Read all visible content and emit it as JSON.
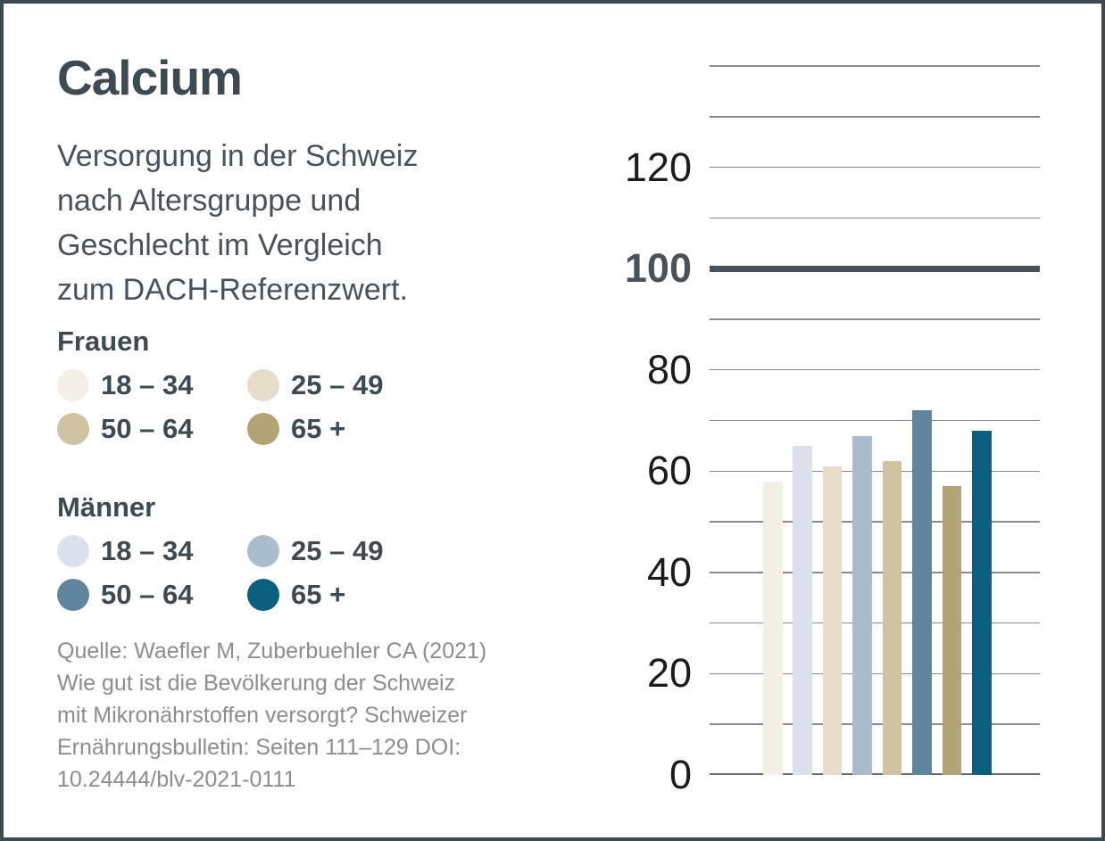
{
  "header": {
    "title": "Calcium",
    "subtitle_lines": [
      "Versorgung in der Schweiz",
      "nach Altersgruppe und",
      "Geschlecht im Vergleich",
      "zum DACH-Referenzwert."
    ]
  },
  "legend": {
    "groups": [
      {
        "name": "Frauen",
        "items": [
          {
            "label": "18 – 34",
            "color": "#f4f0e6"
          },
          {
            "label": "25 – 49",
            "color": "#e5dcc9"
          },
          {
            "label": "50 – 64",
            "color": "#cfc3a1"
          },
          {
            "label": "65 +",
            "color": "#b3a375"
          }
        ]
      },
      {
        "name": "Männer",
        "items": [
          {
            "label": "18 – 34",
            "color": "#dce2ed"
          },
          {
            "label": "25 – 49",
            "color": "#aabdce"
          },
          {
            "label": "50 – 64",
            "color": "#60859f"
          },
          {
            "label": "65 +",
            "color": "#0c607f"
          }
        ]
      }
    ]
  },
  "source": {
    "lines": [
      "Quelle: Waefler M, Zuberbuehler CA (2021)",
      "Wie gut ist die Bevölkerung der Schweiz",
      "mit Mikronährstoffen versorgt? Schweizer",
      "Ernährungsbulletin: Seiten 111–129 DOI:",
      "10.24444/blv-2021-0111"
    ]
  },
  "chart_data": {
    "type": "bar",
    "title": "Calcium — Versorgung in der Schweiz nach Altersgruppe und Geschlecht im Vergleich zum DACH-Referenzwert",
    "categories": [
      "Frauen 18 – 34",
      "Männer 18 – 34",
      "Frauen 25 – 49",
      "Männer 25 – 49",
      "Frauen 50 – 64",
      "Männer 50 – 64",
      "Frauen 65 +",
      "Männer 65 +"
    ],
    "values": [
      58,
      65,
      61,
      67,
      62,
      72,
      57,
      68
    ],
    "colors": [
      "#f4f0e6",
      "#dce2ed",
      "#e5dcc9",
      "#aabdce",
      "#cfc3a1",
      "#60859f",
      "#b3a375",
      "#0c607f"
    ],
    "xlabel": "",
    "ylabel": "",
    "ylim": [
      0,
      140
    ],
    "gridline_step": 10,
    "grid": true,
    "ytick_values": [
      0,
      20,
      40,
      60,
      80,
      100,
      120
    ],
    "reference_line": {
      "value": 100,
      "label": "100"
    },
    "legend_position": "left"
  },
  "colors": {
    "accent_dark": "#3d4a52",
    "subtitle_text": "#47525b",
    "source_text": "#8d8d8d",
    "gridline": "#8b8b8b",
    "baseline": "#6b6b6b",
    "reference_line": "#47525a",
    "tick_text": "#1c1c1c"
  }
}
